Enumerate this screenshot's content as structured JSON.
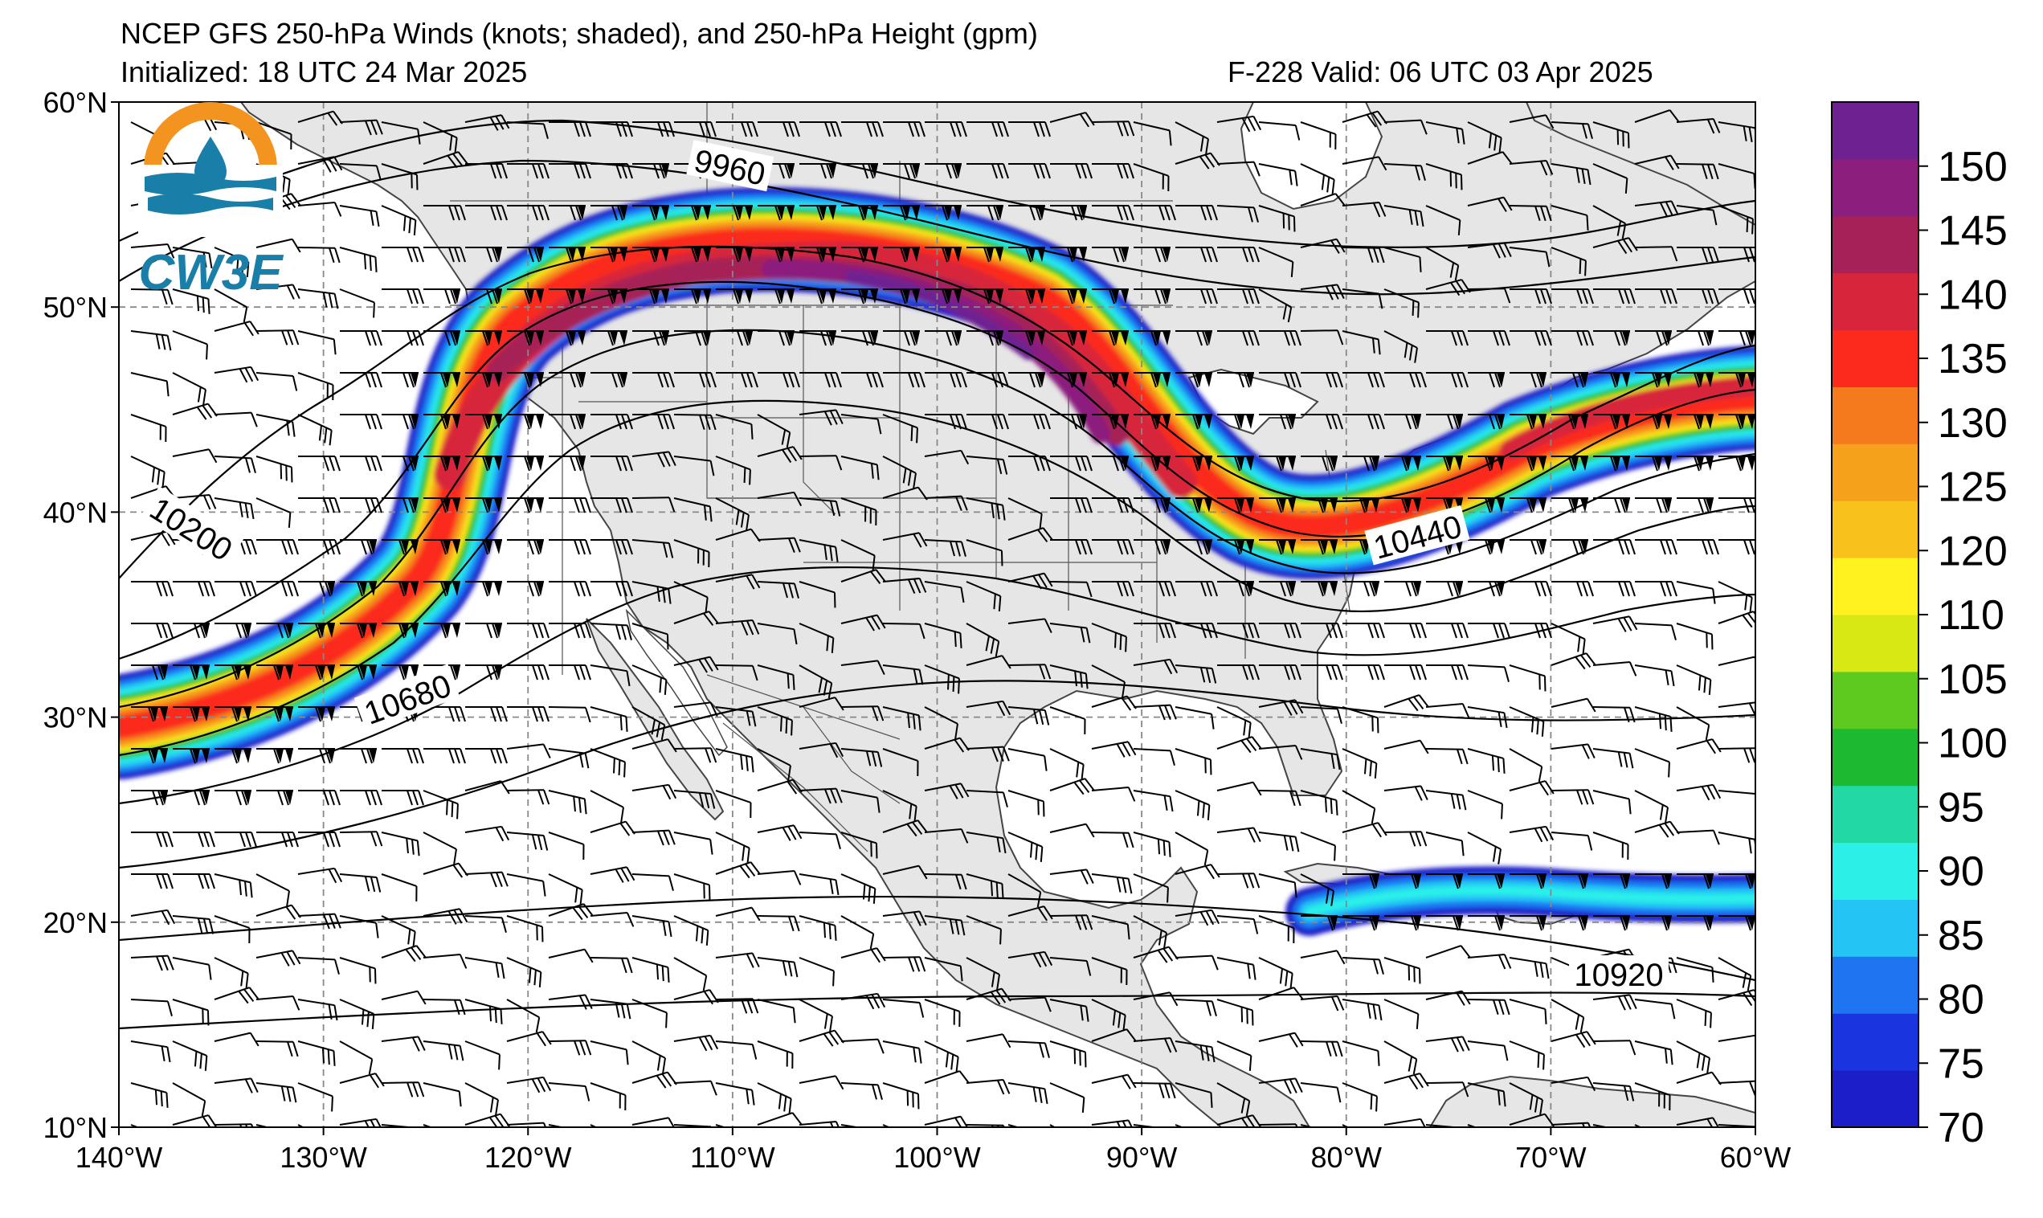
{
  "header": {
    "title": "NCEP GFS 250-hPa Winds (knots; shaded), and 250-hPa Height (gpm)",
    "initialized": "Initialized: 18 UTC 24 Mar 2025",
    "valid": "F-228  Valid: 06 UTC 03 Apr 2025"
  },
  "logo": {
    "text": "CW3E",
    "colors": {
      "orange": "#f39320",
      "teal": "#1a7fa8"
    }
  },
  "map": {
    "lon_range": [
      -140,
      -60
    ],
    "lat_range": [
      10,
      60
    ],
    "lon_ticks": [
      "140°W",
      "130°W",
      "120°W",
      "110°W",
      "100°W",
      "90°W",
      "80°W",
      "70°W",
      "60°W"
    ],
    "lat_ticks": [
      "60°N",
      "50°N",
      "40°N",
      "30°N",
      "20°N",
      "10°N"
    ],
    "gridlines": "dashed",
    "land_color": "#e6e6e6",
    "ocean_color": "#ffffff"
  },
  "contours": {
    "interval_gpm": 120,
    "labels": [
      "9960",
      "10200",
      "10440",
      "10680",
      "10920"
    ]
  },
  "colorbar": {
    "ticks": [
      "70",
      "75",
      "80",
      "85",
      "90",
      "95",
      "100",
      "105",
      "110",
      "120",
      "125",
      "130",
      "135",
      "140",
      "145",
      "150"
    ],
    "colors": [
      "#1c1fc8",
      "#1a35e0",
      "#1f74f2",
      "#24c4f5",
      "#2cefe8",
      "#22d9a5",
      "#1cb931",
      "#5ec91f",
      "#d8e814",
      "#fff21f",
      "#f9c11c",
      "#f6a11c",
      "#f57a1e",
      "#fb2a1c",
      "#d7253b",
      "#a62157",
      "#8c1f7e",
      "#6e2291"
    ]
  }
}
